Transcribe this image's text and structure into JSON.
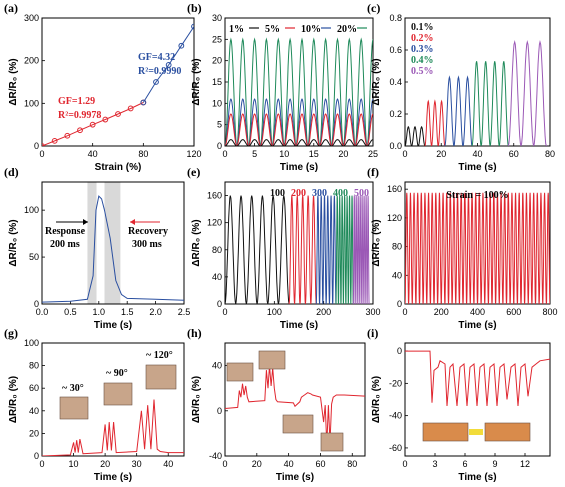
{
  "colors": {
    "black": "#111111",
    "red": "#e0262f",
    "blue": "#2a4fa0",
    "green": "#1f8a5a",
    "purple": "#9b59b6",
    "shade": "#d9d9d9"
  },
  "chart_data": [
    {
      "panel": "(a)",
      "type": "line",
      "xlabel": "Strain (%)",
      "ylabel": "ΔR/R₀ (%)",
      "xlim": [
        0,
        120
      ],
      "ylim": [
        0,
        300
      ],
      "xticks": [
        0,
        40,
        80,
        120
      ],
      "yticks": [
        0,
        100,
        200,
        300
      ],
      "series": [
        {
          "name": "GF=1.29",
          "color": "red",
          "x": [
            0,
            10,
            20,
            30,
            40,
            50,
            60,
            70,
            80
          ],
          "y": [
            0,
            12,
            24,
            37,
            50,
            62,
            75,
            88,
            102
          ]
        },
        {
          "name": "GF=4.32",
          "color": "blue",
          "x": [
            80,
            90,
            100,
            110,
            120
          ],
          "y": [
            102,
            150,
            190,
            235,
            280
          ]
        }
      ],
      "annotations": [
        {
          "text": "GF=4.32",
          "color": "blue"
        },
        {
          "text": "R²=0.9990",
          "color": "blue"
        },
        {
          "text": "GF=1.29",
          "color": "red"
        },
        {
          "text": "R²=0.9978",
          "color": "red"
        }
      ]
    },
    {
      "panel": "(b)",
      "type": "line",
      "xlabel": "Time (s)",
      "ylabel": "ΔR/R₀ (%)",
      "xlim": [
        0,
        25
      ],
      "ylim": [
        0,
        30
      ],
      "xticks": [
        0,
        5,
        10,
        15,
        20,
        25
      ],
      "yticks": [
        0,
        5,
        10,
        15,
        20,
        25,
        30
      ],
      "period": 2,
      "series": [
        {
          "name": "1%",
          "color": "black",
          "amplitude": 1.5
        },
        {
          "name": "5%",
          "color": "red",
          "amplitude": 7.5
        },
        {
          "name": "10%",
          "color": "blue",
          "amplitude": 11
        },
        {
          "name": "20%",
          "color": "green",
          "amplitude": 25
        }
      ]
    },
    {
      "panel": "(c)",
      "type": "line",
      "xlabel": "Time (s)",
      "ylabel": "ΔR/R₀ (%)",
      "xlim": [
        0,
        80
      ],
      "ylim": [
        0,
        0.8
      ],
      "xticks": [
        0,
        20,
        40,
        60,
        80
      ],
      "yticks": [
        0.0,
        0.2,
        0.4,
        0.6,
        0.8
      ],
      "series": [
        {
          "name": "0.1%",
          "color": "black",
          "t_start": 0,
          "t_end": 11,
          "amplitude": 0.12,
          "cycles": 3
        },
        {
          "name": "0.2%",
          "color": "red",
          "t_start": 11,
          "t_end": 22,
          "amplitude": 0.28,
          "cycles": 3
        },
        {
          "name": "0.3%",
          "color": "blue",
          "t_start": 22,
          "t_end": 37,
          "amplitude": 0.43,
          "cycles": 3
        },
        {
          "name": "0.4%",
          "color": "green",
          "t_start": 37,
          "t_end": 57,
          "amplitude": 0.53,
          "cycles": 4
        },
        {
          "name": "0.5%",
          "color": "purple",
          "t_start": 57,
          "t_end": 78,
          "amplitude": 0.65,
          "cycles": 3
        }
      ]
    },
    {
      "panel": "(d)",
      "type": "line",
      "xlabel": "Time (s)",
      "ylabel": "ΔR/R₀ (%)",
      "xlim": [
        0,
        2.5
      ],
      "ylim": [
        0,
        130
      ],
      "xticks": [
        0.0,
        0.5,
        1.0,
        1.5,
        2.0,
        2.5
      ],
      "yticks": [
        0,
        50,
        100
      ],
      "series": [
        {
          "name": "response",
          "color": "blue",
          "x": [
            0,
            0.5,
            0.8,
            0.9,
            0.95,
            1.0,
            1.05,
            1.1,
            1.2,
            1.3,
            1.4,
            1.5,
            2.0,
            2.5
          ],
          "y": [
            2,
            3,
            5,
            30,
            100,
            115,
            112,
            100,
            70,
            25,
            10,
            6,
            5,
            4
          ]
        }
      ],
      "shaded": [
        [
          0.8,
          0.96
        ],
        [
          1.1,
          1.38
        ]
      ],
      "annotations": [
        {
          "text": "Response",
          "color": "black"
        },
        {
          "text": "200 ms",
          "color": "black"
        },
        {
          "text": "Recovery",
          "color": "black"
        },
        {
          "text": "300 ms",
          "color": "black"
        }
      ]
    },
    {
      "panel": "(e)",
      "type": "line",
      "xlabel": "Time (s)",
      "ylabel": "ΔR/R₀ (%)",
      "xlim": [
        0,
        300
      ],
      "ylim": [
        0,
        180
      ],
      "xticks": [
        0,
        100,
        200,
        300
      ],
      "yticks": [
        0,
        40,
        80,
        120,
        160
      ],
      "series": [
        {
          "name": "100",
          "color": "black",
          "t_start": 0,
          "t_end": 130,
          "amplitude": 160,
          "cycles": 6
        },
        {
          "name": "200",
          "color": "red",
          "t_start": 130,
          "t_end": 185,
          "amplitude": 160,
          "cycles": 5
        },
        {
          "name": "300",
          "color": "blue",
          "t_start": 185,
          "t_end": 225,
          "amplitude": 160,
          "cycles": 6
        },
        {
          "name": "400",
          "color": "green",
          "t_start": 225,
          "t_end": 260,
          "amplitude": 160,
          "cycles": 7
        },
        {
          "name": "500",
          "color": "purple",
          "t_start": 260,
          "t_end": 292,
          "amplitude": 160,
          "cycles": 8
        }
      ]
    },
    {
      "panel": "(f)",
      "type": "line",
      "xlabel": "Time (s)",
      "ylabel": "ΔR/R₀ (%)",
      "xlim": [
        0,
        800
      ],
      "ylim": [
        0,
        170
      ],
      "xticks": [
        0,
        200,
        400,
        600,
        800
      ],
      "yticks": [
        0,
        40,
        80,
        120,
        160
      ],
      "series": [
        {
          "name": "",
          "color": "red",
          "t_start": 0,
          "t_end": 800,
          "amplitude": 155,
          "cycles": 40
        }
      ],
      "annotations": [
        {
          "text": "Strain = 100%",
          "color": "black"
        }
      ]
    },
    {
      "panel": "(g)",
      "type": "line",
      "xlabel": "Time (s)",
      "ylabel": "ΔR/R₀ (%)",
      "xlim": [
        0,
        45
      ],
      "ylim": [
        0,
        100
      ],
      "xticks": [
        0,
        10,
        20,
        30,
        40
      ],
      "yticks": [
        0,
        20,
        40,
        60,
        80,
        100
      ],
      "series": [
        {
          "name": "",
          "color": "red",
          "x": [
            0,
            9,
            10,
            10.5,
            11,
            11.5,
            12,
            13,
            19,
            20,
            20.7,
            21.3,
            22,
            22.7,
            23.5,
            30,
            31.5,
            32.5,
            33.5,
            34.5,
            35.5,
            36.5,
            37.5,
            40,
            45
          ],
          "y": [
            0,
            1,
            12,
            3,
            14,
            3,
            15,
            2,
            3,
            28,
            5,
            30,
            5,
            30,
            3,
            4,
            40,
            6,
            45,
            6,
            50,
            6,
            4,
            3,
            3
          ]
        }
      ],
      "annotations": [
        {
          "text": "~ 30°",
          "color": "black"
        },
        {
          "text": "~ 90°",
          "color": "black"
        },
        {
          "text": "~ 120°",
          "color": "black"
        }
      ]
    },
    {
      "panel": "(h)",
      "type": "line",
      "xlabel": "Time (s)",
      "ylabel": "ΔR/R₀ (%)",
      "xlim": [
        0,
        88
      ],
      "ylim": [
        -40,
        60
      ],
      "xticks": [
        0,
        20,
        40,
        60,
        80
      ],
      "yticks": [
        -40,
        0,
        40
      ],
      "series": [
        {
          "name": "",
          "color": "red",
          "x": [
            0,
            8,
            9,
            10,
            11,
            12,
            13,
            14,
            15,
            25,
            26,
            27,
            28,
            29,
            30,
            31,
            32,
            33,
            43,
            44,
            47,
            48,
            50,
            52,
            54,
            55,
            60,
            62,
            63,
            64,
            65,
            66,
            67,
            68,
            70,
            75,
            88
          ],
          "y": [
            2,
            3,
            18,
            12,
            24,
            14,
            22,
            12,
            8,
            9,
            36,
            20,
            40,
            22,
            38,
            20,
            10,
            8,
            7,
            4,
            8,
            12,
            14,
            16,
            15,
            14,
            12,
            -10,
            5,
            -30,
            5,
            -28,
            6,
            12,
            14,
            14,
            13
          ]
        }
      ]
    },
    {
      "panel": "(i)",
      "type": "line",
      "xlabel": "Time (s)",
      "ylabel": "ΔR/R₀ (%)",
      "xlim": [
        0,
        14.5
      ],
      "ylim": [
        -65,
        5
      ],
      "xticks": [
        0,
        3,
        6,
        9,
        12
      ],
      "yticks": [
        -60,
        -40,
        -20,
        0
      ],
      "series": [
        {
          "name": "",
          "color": "red",
          "x": [
            0,
            2.5,
            2.7,
            2.9,
            3.3,
            3.5,
            4.0,
            4.2,
            4.5,
            4.8,
            5.2,
            5.5,
            5.9,
            6.2,
            6.5,
            6.9,
            7.2,
            7.5,
            7.9,
            8.2,
            8.5,
            8.9,
            9.2,
            9.5,
            9.9,
            10.2,
            10.6,
            11.0,
            11.3,
            11.6,
            12.0,
            12.3,
            12.7,
            13.1,
            13.5,
            14.5
          ],
          "y": [
            0,
            0,
            -32,
            -12,
            -10,
            -6,
            -8,
            -34,
            -10,
            -8,
            -34,
            -10,
            -8,
            -34,
            -10,
            -8,
            -34,
            -10,
            -8,
            -34,
            -10,
            -8,
            -34,
            -10,
            -8,
            -30,
            -10,
            -8,
            -34,
            -10,
            -8,
            -28,
            -10,
            -8,
            -6,
            -5
          ]
        }
      ]
    }
  ]
}
